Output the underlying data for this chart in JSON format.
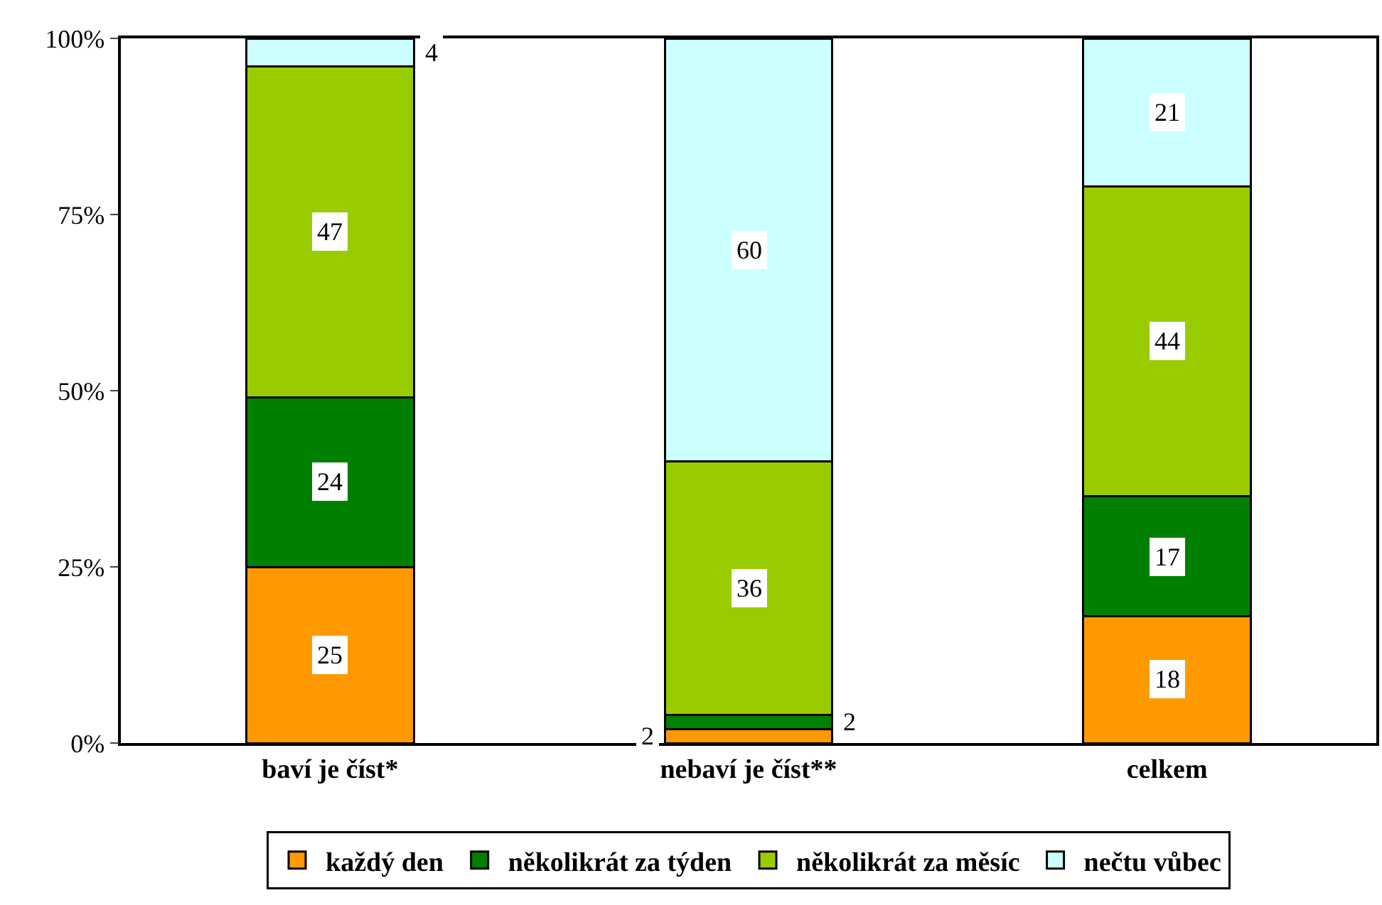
{
  "chart_data": {
    "type": "bar",
    "stacked": true,
    "categories": [
      "baví je číst*",
      "nebaví je číst**",
      "celkem"
    ],
    "series": [
      {
        "name": "každý den",
        "color": "#ff9900",
        "values": [
          25,
          2,
          18
        ]
      },
      {
        "name": "několikrát za týden",
        "color": "#008000",
        "values": [
          24,
          2,
          17
        ]
      },
      {
        "name": "několikrát za měsíc",
        "color": "#99cc00",
        "values": [
          47,
          36,
          44
        ]
      },
      {
        "name": "nečtu vůbec",
        "color": "#ccffff",
        "values": [
          4,
          60,
          21
        ]
      }
    ],
    "ylim": [
      0,
      100
    ],
    "yticks": [
      {
        "value": 0,
        "label": "0%"
      },
      {
        "value": 25,
        "label": "25%"
      },
      {
        "value": 50,
        "label": "50%"
      },
      {
        "value": 75,
        "label": "75%"
      },
      {
        "value": 100,
        "label": "100%"
      }
    ],
    "data_labels": true,
    "legend": "bottom",
    "grid": false
  }
}
